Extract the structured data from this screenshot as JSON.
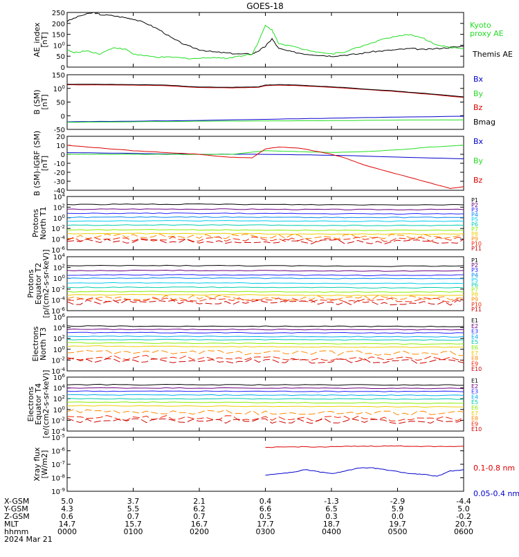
{
  "title": "GOES-18",
  "date_label": "2024 Mar 21",
  "x_axis": {
    "start": "00:00",
    "end": "06:00",
    "ticks": [
      0,
      1,
      2,
      3,
      4,
      5,
      6
    ]
  },
  "ephemeris": {
    "rows": [
      {
        "label": "X-GSM",
        "values": [
          "5.0",
          "3.7",
          "2.1",
          "0.4",
          "-1.3",
          "-2.9",
          "-4.4"
        ]
      },
      {
        "label": "Y-GSM",
        "values": [
          "4.3",
          "5.5",
          "6.2",
          "6.6",
          "6.5",
          "5.9",
          "5.0"
        ]
      },
      {
        "label": "Z-GSM",
        "values": [
          "0.6",
          "0.7",
          "0.7",
          "0.5",
          "0.3",
          "0.0",
          "-0.2"
        ]
      },
      {
        "label": "MLT",
        "values": [
          "14.7",
          "15.7",
          "16.7",
          "17.7",
          "18.7",
          "19.7",
          "20.7"
        ]
      },
      {
        "label": "hhmm",
        "values": [
          "0000",
          "0100",
          "0200",
          "0300",
          "0400",
          "0500",
          "0600"
        ]
      }
    ]
  },
  "colors": {
    "black": "#000000",
    "green": "#22dd22",
    "red": "#dd0000",
    "blue": "#0000cc"
  },
  "chart_data": [
    {
      "type": "line",
      "ylabel": "AE_index [nT]",
      "ylim": [
        0,
        250
      ],
      "yticks": [
        "0",
        "50",
        "100",
        "150",
        "200",
        "250"
      ],
      "series": [
        {
          "name": "Themis AE",
          "color": "#000000",
          "x": [
            0,
            0.2,
            0.4,
            0.5,
            0.7,
            0.9,
            1.0,
            1.2,
            1.4,
            1.6,
            1.8,
            2.0,
            2.2,
            2.4,
            2.6,
            2.8,
            2.9,
            3.0,
            3.1,
            3.2,
            3.4,
            3.6,
            3.8,
            4.0,
            4.2,
            4.4,
            4.6,
            4.8,
            5.0,
            5.2,
            5.4,
            5.6,
            5.8,
            6.0
          ],
          "y": [
            210,
            235,
            250,
            240,
            235,
            225,
            220,
            200,
            170,
            130,
            100,
            80,
            70,
            65,
            60,
            60,
            75,
            95,
            130,
            85,
            70,
            60,
            55,
            50,
            55,
            60,
            70,
            75,
            80,
            85,
            80,
            85,
            90,
            95
          ]
        },
        {
          "name": "Kyoto proxy AE",
          "color": "#22dd22",
          "x": [
            0,
            0.1,
            0.3,
            0.5,
            0.7,
            0.9,
            1.0,
            1.2,
            1.4,
            1.6,
            1.8,
            2.0,
            2.2,
            2.4,
            2.6,
            2.8,
            2.9,
            3.0,
            3.1,
            3.2,
            3.4,
            3.6,
            3.8,
            4.0,
            4.2,
            4.4,
            4.6,
            4.8,
            5.0,
            5.2,
            5.4,
            5.6,
            5.8,
            6.0
          ],
          "y": [
            80,
            65,
            75,
            60,
            90,
            80,
            60,
            50,
            45,
            45,
            40,
            40,
            45,
            40,
            50,
            60,
            120,
            190,
            170,
            110,
            95,
            80,
            70,
            60,
            70,
            90,
            110,
            130,
            140,
            150,
            130,
            100,
            90,
            85
          ]
        }
      ]
    },
    {
      "type": "line",
      "ylabel": "B (SM) [nT]",
      "ylim": [
        -50,
        150
      ],
      "yticks": [
        "-50",
        "0",
        "50",
        "100",
        "150"
      ],
      "series": [
        {
          "name": "Bx",
          "color": "#0000cc",
          "x": [
            0,
            1,
            2,
            3,
            4,
            5,
            6
          ],
          "y": [
            -22,
            -20,
            -17,
            -13,
            -9,
            -5,
            -2
          ]
        },
        {
          "name": "By",
          "color": "#22dd22",
          "x": [
            0,
            1,
            2,
            3,
            4,
            5,
            6
          ],
          "y": [
            -24,
            -22,
            -20,
            -19,
            -18,
            -16,
            -15
          ]
        },
        {
          "name": "Bz",
          "color": "#dd0000",
          "x": [
            0,
            0.5,
            1,
            1.5,
            2,
            2.5,
            2.9,
            3.0,
            3.2,
            3.5,
            4,
            4.5,
            5,
            5.5,
            6
          ],
          "y": [
            113,
            113,
            112,
            110,
            103,
            102,
            104,
            110,
            112,
            110,
            104,
            96,
            88,
            78,
            67
          ]
        },
        {
          "name": "Bmag",
          "color": "#000000",
          "x": [
            0,
            0.5,
            1,
            1.5,
            2,
            2.5,
            2.9,
            3.0,
            3.2,
            3.5,
            4,
            4.5,
            5,
            5.5,
            6
          ],
          "y": [
            115,
            115,
            114,
            112,
            105,
            104,
            106,
            112,
            114,
            112,
            106,
            98,
            90,
            80,
            69
          ]
        }
      ]
    },
    {
      "type": "line",
      "ylabel": "B (SM)-IGRF (SM) [nT]",
      "ylim": [
        -40,
        20
      ],
      "yticks": [
        "-40",
        "-30",
        "-20",
        "-10",
        "0",
        "10",
        "20"
      ],
      "series": [
        {
          "name": "Bx",
          "color": "#0000cc",
          "x": [
            0,
            1,
            2,
            3,
            4,
            5,
            6
          ],
          "y": [
            2,
            1,
            0,
            0,
            -1,
            -3,
            -5
          ]
        },
        {
          "name": "By",
          "color": "#22dd22",
          "x": [
            0,
            0.5,
            1,
            1.5,
            2,
            2.5,
            3,
            3.5,
            4,
            4.5,
            5,
            5.5,
            6
          ],
          "y": [
            0,
            0,
            0,
            0,
            0,
            0,
            4,
            3,
            2,
            3,
            5,
            8,
            10
          ]
        },
        {
          "name": "Bz",
          "color": "#dd0000",
          "x": [
            0,
            0.5,
            1,
            1.5,
            2,
            2.4,
            2.8,
            3.0,
            3.2,
            3.5,
            3.8,
            4.0,
            4.2,
            4.5,
            5.0,
            5.5,
            5.8,
            6.0
          ],
          "y": [
            10,
            7,
            4,
            2,
            0,
            -3,
            -4,
            6,
            8,
            7,
            3,
            0,
            -4,
            -12,
            -22,
            -32,
            -38,
            -36
          ]
        }
      ]
    },
    {
      "type": "line",
      "scale": "log",
      "ylabel": "Protons North T1",
      "ylim_exp": [
        -6,
        4
      ],
      "yticks": [
        "10-6",
        "10-4",
        "10-2",
        "100",
        "102",
        "104"
      ],
      "series_names": [
        "P1",
        "P2",
        "P3",
        "P4",
        "P5",
        "P6",
        "P7",
        "P8",
        "P9",
        "P10",
        "P11"
      ],
      "series_colors": [
        "#000000",
        "#6a0080",
        "#2222ff",
        "#0088ee",
        "#00ccee",
        "#00ccaa",
        "#88ee00",
        "#eecc00",
        "#ff8800",
        "#ee2200",
        "#cc0000"
      ],
      "levels_exp": [
        2.5,
        1.6,
        0.8,
        0.1,
        -0.6,
        -1.4,
        -2.3,
        -3.0,
        -3.5,
        -4.0,
        -4.4
      ]
    },
    {
      "type": "line",
      "scale": "log",
      "ylabel": "Protons Equator T2 [p/(cm2-s-sr-keV)]",
      "ylim_exp": [
        -6,
        4
      ],
      "yticks": [
        "10-6",
        "10-4",
        "10-2",
        "100",
        "102",
        "104"
      ],
      "series_names": [
        "P1",
        "P2",
        "P3",
        "P4",
        "P5",
        "P6",
        "P7",
        "P8",
        "P9",
        "P10",
        "P11"
      ],
      "series_colors": [
        "#000000",
        "#6a0080",
        "#2222ff",
        "#0088ee",
        "#00ccee",
        "#00ccaa",
        "#88ee00",
        "#eecc00",
        "#ff8800",
        "#ee2200",
        "#cc0000"
      ],
      "levels_exp": [
        2.3,
        1.4,
        0.6,
        0.0,
        -0.9,
        -1.7,
        -2.5,
        -3.1,
        -3.6,
        -4.0,
        -4.5
      ]
    },
    {
      "type": "line",
      "scale": "log",
      "ylabel": "Electrons North T3",
      "ylim_exp": [
        -4,
        6
      ],
      "yticks": [
        "10-4",
        "10-2",
        "100",
        "102",
        "104",
        "106"
      ],
      "series_names": [
        "E1",
        "E2",
        "E3",
        "E4",
        "E5",
        "E6",
        "E7",
        "E8",
        "E9",
        "E10"
      ],
      "series_colors": [
        "#000000",
        "#6a0080",
        "#2222ff",
        "#00aaee",
        "#00ccaa",
        "#88ee00",
        "#eecc00",
        "#ff8800",
        "#ee2200",
        "#cc0000"
      ],
      "levels_exp": [
        4.3,
        3.7,
        3.1,
        2.4,
        1.8,
        1.2,
        0.6,
        -0.5,
        -1.5,
        -2.0
      ]
    },
    {
      "type": "line",
      "scale": "log",
      "ylabel": "Electrons Equator T4 [e/(cm2-s-sr-keV)]",
      "ylim_exp": [
        -4,
        6
      ],
      "yticks": [
        "10-4",
        "10-2",
        "100",
        "102",
        "104",
        "106"
      ],
      "series_names": [
        "E1",
        "E2",
        "E3",
        "E4",
        "E5",
        "E6",
        "E7",
        "E8",
        "E9",
        "E10"
      ],
      "series_colors": [
        "#000000",
        "#6a0080",
        "#2222ff",
        "#00aaee",
        "#00ccaa",
        "#88ee00",
        "#eecc00",
        "#ff8800",
        "#ee2200",
        "#cc0000"
      ],
      "levels_exp": [
        4.6,
        4.0,
        3.4,
        2.7,
        2.0,
        1.4,
        0.7,
        -0.4,
        -1.5,
        -2.0
      ]
    },
    {
      "type": "line",
      "scale": "log",
      "ylabel": "Xray flux [W/m2]",
      "ylim_exp": [
        -9,
        -5
      ],
      "yticks": [
        "10-9",
        "10-8",
        "10-7",
        "10-6",
        "10-5"
      ],
      "series": [
        {
          "name": "0.1-0.8 nm",
          "color": "#dd0000",
          "x": [
            3.0,
            3.3,
            3.6,
            3.9,
            4.2,
            4.5,
            4.8,
            5.1,
            5.4,
            5.7,
            6.0
          ],
          "y": [
            -5.75,
            -5.72,
            -5.7,
            -5.72,
            -5.68,
            -5.66,
            -5.65,
            -5.65,
            -5.67,
            -5.68,
            -5.66
          ]
        },
        {
          "name": "0.05-0.4 nm",
          "color": "#0000cc",
          "x": [
            3.0,
            3.2,
            3.4,
            3.6,
            3.8,
            4.0,
            4.2,
            4.4,
            4.6,
            4.8,
            5.0,
            5.2,
            5.4,
            5.6,
            5.8,
            6.0
          ],
          "y": [
            -7.8,
            -7.7,
            -7.6,
            -7.4,
            -7.55,
            -7.7,
            -7.5,
            -7.3,
            -7.25,
            -7.4,
            -7.55,
            -7.7,
            -7.75,
            -7.9,
            -7.5,
            -7.4
          ]
        }
      ]
    }
  ]
}
